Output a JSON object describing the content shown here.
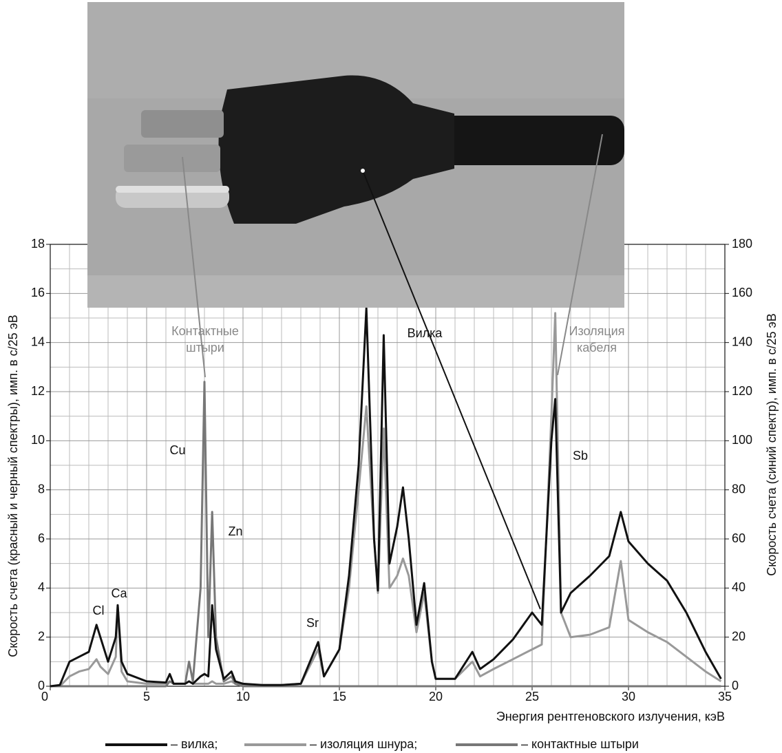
{
  "chart_data": {
    "type": "line",
    "xlabel": "Энергия рентгеновского излучения, кэВ",
    "ylabel": "Скорость счета (красный и черный спектры), имп. в с/25 эВ",
    "y2label": "Скорость счета (синий спектр), имп. в с/25 эВ",
    "x": [
      0,
      0.5,
      1,
      1.5,
      2,
      2.4,
      2.6,
      3,
      3.4,
      3.5,
      3.7,
      4,
      5,
      6,
      6.2,
      6.4,
      7,
      7.2,
      7.4,
      7.8,
      8,
      8.2,
      8.4,
      8.6,
      9,
      9.4,
      9.6,
      10,
      11,
      12,
      13,
      13.9,
      14.2,
      15,
      15.5,
      16,
      16.4,
      16.8,
      17,
      17.3,
      17.6,
      18,
      18.3,
      18.6,
      19,
      19.4,
      19.8,
      20,
      21,
      21.9,
      22.3,
      23,
      24,
      25,
      25.5,
      26,
      26.2,
      26.5,
      27,
      28,
      29,
      29.6,
      30,
      31,
      32,
      33,
      34,
      34.8
    ],
    "series": [
      {
        "name": "– вилка;",
        "color": "#111111",
        "values": [
          0,
          0.05,
          1.0,
          1.2,
          1.4,
          2.5,
          2.0,
          1.0,
          2.0,
          3.3,
          1.0,
          0.5,
          0.2,
          0.15,
          0.5,
          0.1,
          0.1,
          0.2,
          0.1,
          0.4,
          0.5,
          0.4,
          3.3,
          1.5,
          0.3,
          0.6,
          0.2,
          0.1,
          0.05,
          0.05,
          0.1,
          1.8,
          0.4,
          1.5,
          4.5,
          9,
          15.4,
          6,
          3.9,
          14.3,
          5,
          6.5,
          8.1,
          6,
          2.5,
          4.2,
          1.0,
          0.3,
          0.3,
          1.4,
          0.7,
          1.1,
          1.9,
          3.0,
          2.5,
          10,
          11.7,
          3,
          3.8,
          4.5,
          5.3,
          7.1,
          5.9,
          5,
          4.3,
          3,
          1.4,
          0.3
        ]
      },
      {
        "name": "– изоляция шнура;",
        "color": "#999999",
        "axis": "y2",
        "values": [
          0,
          0,
          4,
          6,
          7,
          11,
          8,
          5,
          12,
          33,
          6,
          2,
          1,
          1,
          2,
          1,
          1,
          2,
          1,
          1,
          1,
          1,
          2,
          1,
          1,
          2,
          1,
          0.5,
          0.5,
          0.5,
          1,
          15,
          4,
          15,
          40,
          80,
          114,
          60,
          38,
          105,
          40,
          45,
          52,
          45,
          22,
          38,
          10,
          3,
          3,
          10,
          4,
          7,
          11,
          15,
          17,
          110,
          152,
          30,
          20,
          21,
          24,
          51,
          27,
          22,
          18,
          12,
          6,
          2
        ]
      },
      {
        "name": "– контактные штыри",
        "color": "#777777",
        "values": [
          0,
          0,
          0,
          0,
          0,
          0,
          0,
          0,
          0,
          0,
          0,
          0,
          0,
          0,
          0.2,
          0.1,
          0.1,
          1.0,
          0.2,
          4,
          12.4,
          2,
          7.1,
          2,
          0.2,
          0.4,
          0.1,
          0,
          0,
          0,
          0,
          0,
          0,
          0,
          0,
          0,
          0,
          0,
          0,
          0,
          0,
          0,
          0,
          0,
          0,
          0,
          0,
          0,
          0,
          0,
          0,
          0,
          0,
          0,
          0,
          0,
          0,
          0,
          0,
          0,
          0,
          0,
          0,
          0,
          0,
          0,
          0,
          0
        ]
      }
    ],
    "xlim": [
      0,
      35
    ],
    "xticks": [
      0,
      5,
      10,
      15,
      20,
      25,
      30,
      35
    ],
    "ylim": [
      0,
      18
    ],
    "yticks": [
      0,
      2,
      4,
      6,
      8,
      10,
      12,
      14,
      16,
      18
    ],
    "y2lim": [
      0,
      180
    ],
    "y2ticks": [
      0,
      20,
      40,
      60,
      80,
      100,
      120,
      140,
      160,
      180
    ],
    "xminorticks": [
      1,
      2,
      3,
      4,
      6,
      7,
      8,
      9,
      11,
      12,
      13,
      14,
      16,
      17,
      18,
      19,
      21,
      22,
      23,
      24,
      26,
      27,
      28,
      29,
      31,
      32,
      33,
      34
    ],
    "yminorticks": [
      1,
      3,
      5,
      7,
      9,
      11,
      13,
      15,
      17
    ],
    "grid": true,
    "annotations": [
      "Cl",
      "Ca",
      "Cu",
      "Zn",
      "Sr",
      "Sb",
      "Вилка"
    ],
    "callouts": [
      [
        "Контактные",
        "штыри"
      ],
      [
        "Изоляция",
        "кабеля"
      ]
    ]
  }
}
